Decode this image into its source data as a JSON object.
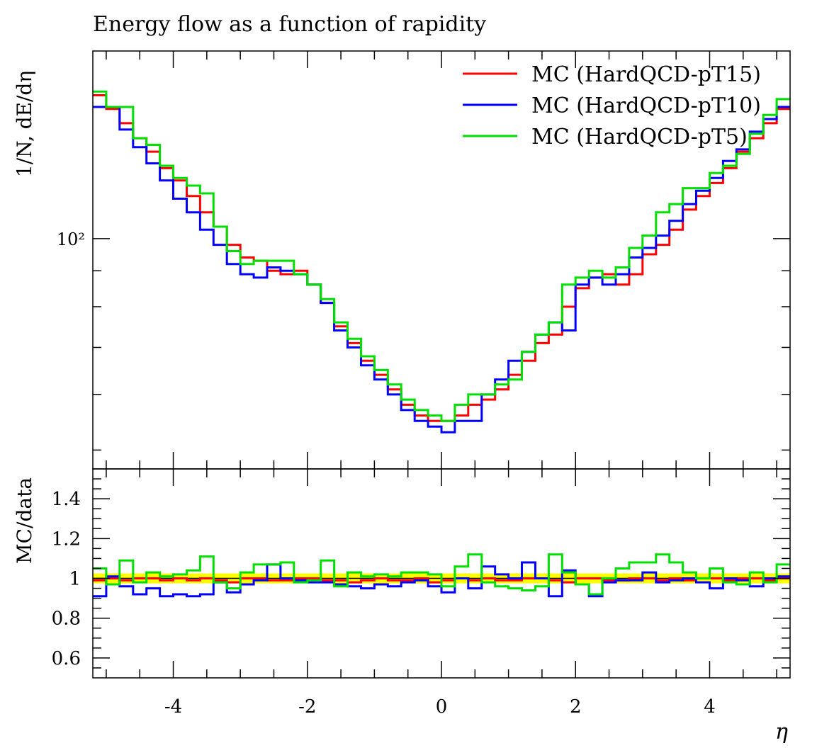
{
  "chart_data": [
    {
      "type": "line",
      "subtype": "step-histogram",
      "title": "Energy flow as a function of rapidity",
      "ylabel": "1/N, dE/dη",
      "xlabel": "",
      "xlim": [
        -5.2,
        5.2
      ],
      "ylim": [
        47,
        185
      ],
      "yscale": "log",
      "y_tick_label": "10²",
      "grid": false,
      "legend_position": "top-right",
      "bin_edges": [
        -5.2,
        -5.0,
        -4.8,
        -4.6,
        -4.4,
        -4.2,
        -4.0,
        -3.8,
        -3.6,
        -3.4,
        -3.2,
        -3.0,
        -2.8,
        -2.6,
        -2.4,
        -2.2,
        -2.0,
        -1.8,
        -1.6,
        -1.4,
        -1.2,
        -1.0,
        -0.8,
        -0.6,
        -0.4,
        -0.2,
        0.0,
        0.2,
        0.4,
        0.6,
        0.8,
        1.0,
        1.2,
        1.4,
        1.6,
        1.8,
        2.0,
        2.2,
        2.4,
        2.6,
        2.8,
        3.0,
        3.2,
        3.4,
        3.6,
        3.8,
        4.0,
        4.2,
        4.4,
        4.6,
        4.8,
        5.0,
        5.2
      ],
      "series": [
        {
          "name": "MC (HardQCD-pT15)",
          "color": "#ff0000",
          "values": [
            160,
            153,
            146,
            139,
            133,
            126,
            121,
            115,
            109,
            104,
            98,
            94,
            93,
            90,
            89,
            90,
            86,
            81,
            75,
            71,
            67,
            64,
            61,
            58,
            56,
            55,
            55,
            56,
            58,
            59,
            61,
            64,
            67,
            71,
            73,
            80,
            85,
            88,
            89,
            86,
            89,
            95,
            98,
            103,
            110,
            115,
            120,
            126,
            133,
            139,
            146,
            153
          ]
        },
        {
          "name": "MC (HardQCD-pT10)",
          "color": "#0000ff",
          "values": [
            154,
            154,
            143,
            135,
            128,
            121,
            114,
            109,
            103,
            98,
            92,
            89,
            88,
            91,
            90,
            89,
            86,
            81,
            74,
            70,
            66,
            63,
            60,
            57,
            55,
            54,
            53,
            55,
            55,
            60,
            63,
            67,
            69,
            73,
            76,
            74,
            86,
            88,
            86,
            89,
            94,
            97,
            101,
            106,
            112,
            117,
            122,
            129,
            134,
            142,
            148,
            154
          ]
        },
        {
          "name": "MC (HardQCD-pT5)",
          "color": "#00e000",
          "values": [
            162,
            154,
            154,
            139,
            136,
            127,
            122,
            119,
            116,
            104,
            96,
            92,
            93,
            93,
            93,
            89,
            86,
            82,
            76,
            72,
            68,
            65,
            62,
            59,
            57,
            56,
            55,
            58,
            60,
            60,
            62,
            63,
            69,
            73,
            76,
            86,
            88,
            90,
            88,
            91,
            97,
            101,
            109,
            112,
            118,
            118,
            124,
            127,
            132,
            141,
            150,
            158
          ]
        }
      ]
    },
    {
      "type": "line",
      "subtype": "step-ratio",
      "ylabel": "MC/data",
      "xlabel": "η",
      "xlim": [
        -5.2,
        5.2
      ],
      "ylim": [
        0.5,
        1.55
      ],
      "yticks": [
        0.6,
        0.8,
        1.0,
        1.2,
        1.4
      ],
      "ytick_labels": [
        "0.6",
        "0.8",
        "1",
        "1.2",
        "1.4"
      ],
      "xticks": [
        -4,
        -2,
        0,
        2,
        4
      ],
      "xtick_labels": [
        "-4",
        "-2",
        "0",
        "2",
        "4"
      ],
      "band_color": "#ffff00",
      "band_range": [
        0.975,
        1.025
      ],
      "reference_line": 1.0,
      "grid": false,
      "series": [
        {
          "name": "MC (HardQCD-pT15)",
          "color": "#ff0000",
          "values": [
            0.99,
            1.0,
            0.99,
            1.0,
            1.0,
            0.99,
            1.0,
            0.99,
            1.0,
            0.99,
            0.98,
            1.0,
            1.0,
            0.99,
            0.99,
            1.0,
            1.0,
            0.99,
            0.99,
            0.98,
            0.99,
            1.0,
            0.99,
            0.99,
            1.0,
            0.98,
            0.99,
            1.0,
            0.99,
            1.0,
            0.99,
            0.99,
            1.0,
            1.0,
            0.99,
            0.98,
            1.0,
            1.0,
            0.99,
            0.99,
            1.0,
            1.0,
            0.99,
            1.0,
            0.99,
            1.0,
            1.0,
            0.99,
            1.0,
            1.0,
            0.99,
            1.0
          ]
        },
        {
          "name": "MC (HardQCD-pT10)",
          "color": "#0000ff",
          "values": [
            0.91,
            1.01,
            0.96,
            0.92,
            0.95,
            0.91,
            0.92,
            0.91,
            0.92,
            0.98,
            0.93,
            0.97,
            0.99,
            1.07,
            1.0,
            0.99,
            0.98,
            0.98,
            0.97,
            0.96,
            0.95,
            0.97,
            0.96,
            0.98,
            0.99,
            0.96,
            0.93,
            1.0,
            0.95,
            1.06,
            1.02,
            1.0,
            1.08,
            1.0,
            0.91,
            1.04,
            0.97,
            0.91,
            0.98,
            0.99,
            0.99,
            1.03,
            0.98,
            0.99,
            1.0,
            0.98,
            0.95,
            1.0,
            0.99,
            0.96,
            1.0,
            1.01
          ]
        },
        {
          "name": "MC (HardQCD-pT5)",
          "color": "#00e000",
          "values": [
            1.05,
            0.97,
            1.09,
            0.98,
            1.03,
            1.01,
            1.02,
            1.04,
            1.11,
            0.98,
            0.95,
            1.03,
            1.07,
            1.07,
            1.08,
            0.98,
            0.99,
            1.09,
            0.96,
            1.03,
            1.01,
            1.02,
            1.01,
            1.03,
            1.03,
            1.02,
            0.96,
            1.06,
            1.12,
            0.98,
            0.96,
            0.95,
            0.94,
            0.96,
            1.12,
            1.03,
            0.97,
            0.92,
            1.0,
            1.05,
            1.08,
            1.08,
            1.12,
            1.08,
            1.03,
            1.0,
            1.05,
            0.98,
            0.97,
            1.03,
            0.98,
            1.07
          ]
        }
      ]
    }
  ]
}
